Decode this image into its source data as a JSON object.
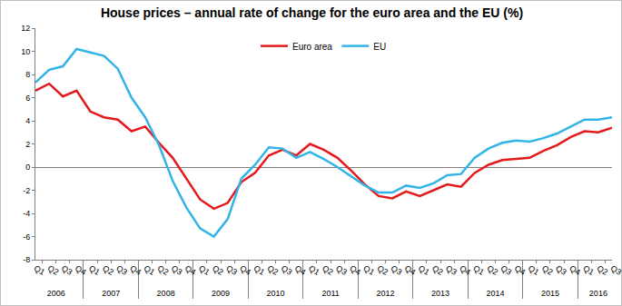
{
  "chart_data": {
    "type": "line",
    "title": "House prices – annual rate of change for the euro area and the EU (%)",
    "categories": [
      [
        "2006",
        "Q1"
      ],
      [
        "2006",
        "Q2"
      ],
      [
        "2006",
        "Q3"
      ],
      [
        "2006",
        "Q4"
      ],
      [
        "2007",
        "Q1"
      ],
      [
        "2007",
        "Q2"
      ],
      [
        "2007",
        "Q3"
      ],
      [
        "2007",
        "Q4"
      ],
      [
        "2008",
        "Q1"
      ],
      [
        "2008",
        "Q2"
      ],
      [
        "2008",
        "Q3"
      ],
      [
        "2008",
        "Q4"
      ],
      [
        "2009",
        "Q1"
      ],
      [
        "2009",
        "Q2"
      ],
      [
        "2009",
        "Q3"
      ],
      [
        "2009",
        "Q4"
      ],
      [
        "2010",
        "Q1"
      ],
      [
        "2010",
        "Q2"
      ],
      [
        "2010",
        "Q3"
      ],
      [
        "2010",
        "Q4"
      ],
      [
        "2011",
        "Q1"
      ],
      [
        "2011",
        "Q2"
      ],
      [
        "2011",
        "Q3"
      ],
      [
        "2011",
        "Q4"
      ],
      [
        "2012",
        "Q1"
      ],
      [
        "2012",
        "Q2"
      ],
      [
        "2012",
        "Q3"
      ],
      [
        "2012",
        "Q4"
      ],
      [
        "2013",
        "Q1"
      ],
      [
        "2013",
        "Q2"
      ],
      [
        "2013",
        "Q3"
      ],
      [
        "2013",
        "Q4"
      ],
      [
        "2014",
        "Q1"
      ],
      [
        "2014",
        "Q2"
      ],
      [
        "2014",
        "Q3"
      ],
      [
        "2014",
        "Q4"
      ],
      [
        "2015",
        "Q1"
      ],
      [
        "2015",
        "Q2"
      ],
      [
        "2015",
        "Q3"
      ],
      [
        "2015",
        "Q4"
      ],
      [
        "2016",
        "Q1"
      ],
      [
        "2016",
        "Q2"
      ],
      [
        "2016",
        "Q3"
      ]
    ],
    "series": [
      {
        "name": "Euro area",
        "color": "#e3191c",
        "values": [
          6.6,
          7.2,
          6.1,
          6.6,
          4.8,
          4.3,
          4.1,
          3.1,
          3.5,
          2.1,
          0.8,
          -1.0,
          -2.8,
          -3.6,
          -3.1,
          -1.3,
          -0.5,
          1.0,
          1.5,
          1.0,
          2.0,
          1.5,
          0.8,
          -0.3,
          -1.5,
          -2.5,
          -2.7,
          -2.1,
          -2.5,
          -2.0,
          -1.5,
          -1.7,
          -0.5,
          0.2,
          0.6,
          0.7,
          0.8,
          1.4,
          1.9,
          2.6,
          3.1,
          3.0,
          3.4
        ]
      },
      {
        "name": "EU",
        "color": "#33b4e6",
        "values": [
          7.3,
          8.4,
          8.7,
          10.2,
          9.9,
          9.6,
          8.5,
          6.0,
          4.3,
          1.9,
          -1.2,
          -3.5,
          -5.3,
          -6.0,
          -4.5,
          -1.0,
          0.2,
          1.7,
          1.6,
          0.8,
          1.3,
          0.7,
          0.0,
          -0.8,
          -1.6,
          -2.2,
          -2.2,
          -1.6,
          -1.8,
          -1.4,
          -0.7,
          -0.6,
          0.8,
          1.6,
          2.1,
          2.3,
          2.2,
          2.5,
          2.9,
          3.5,
          4.1,
          4.1,
          4.3
        ]
      }
    ],
    "ylim": [
      -8,
      12
    ],
    "yticks": [
      -8,
      -6,
      -4,
      -2,
      0,
      2,
      4,
      6,
      8,
      10,
      12
    ],
    "grid": false,
    "legend": "top"
  }
}
